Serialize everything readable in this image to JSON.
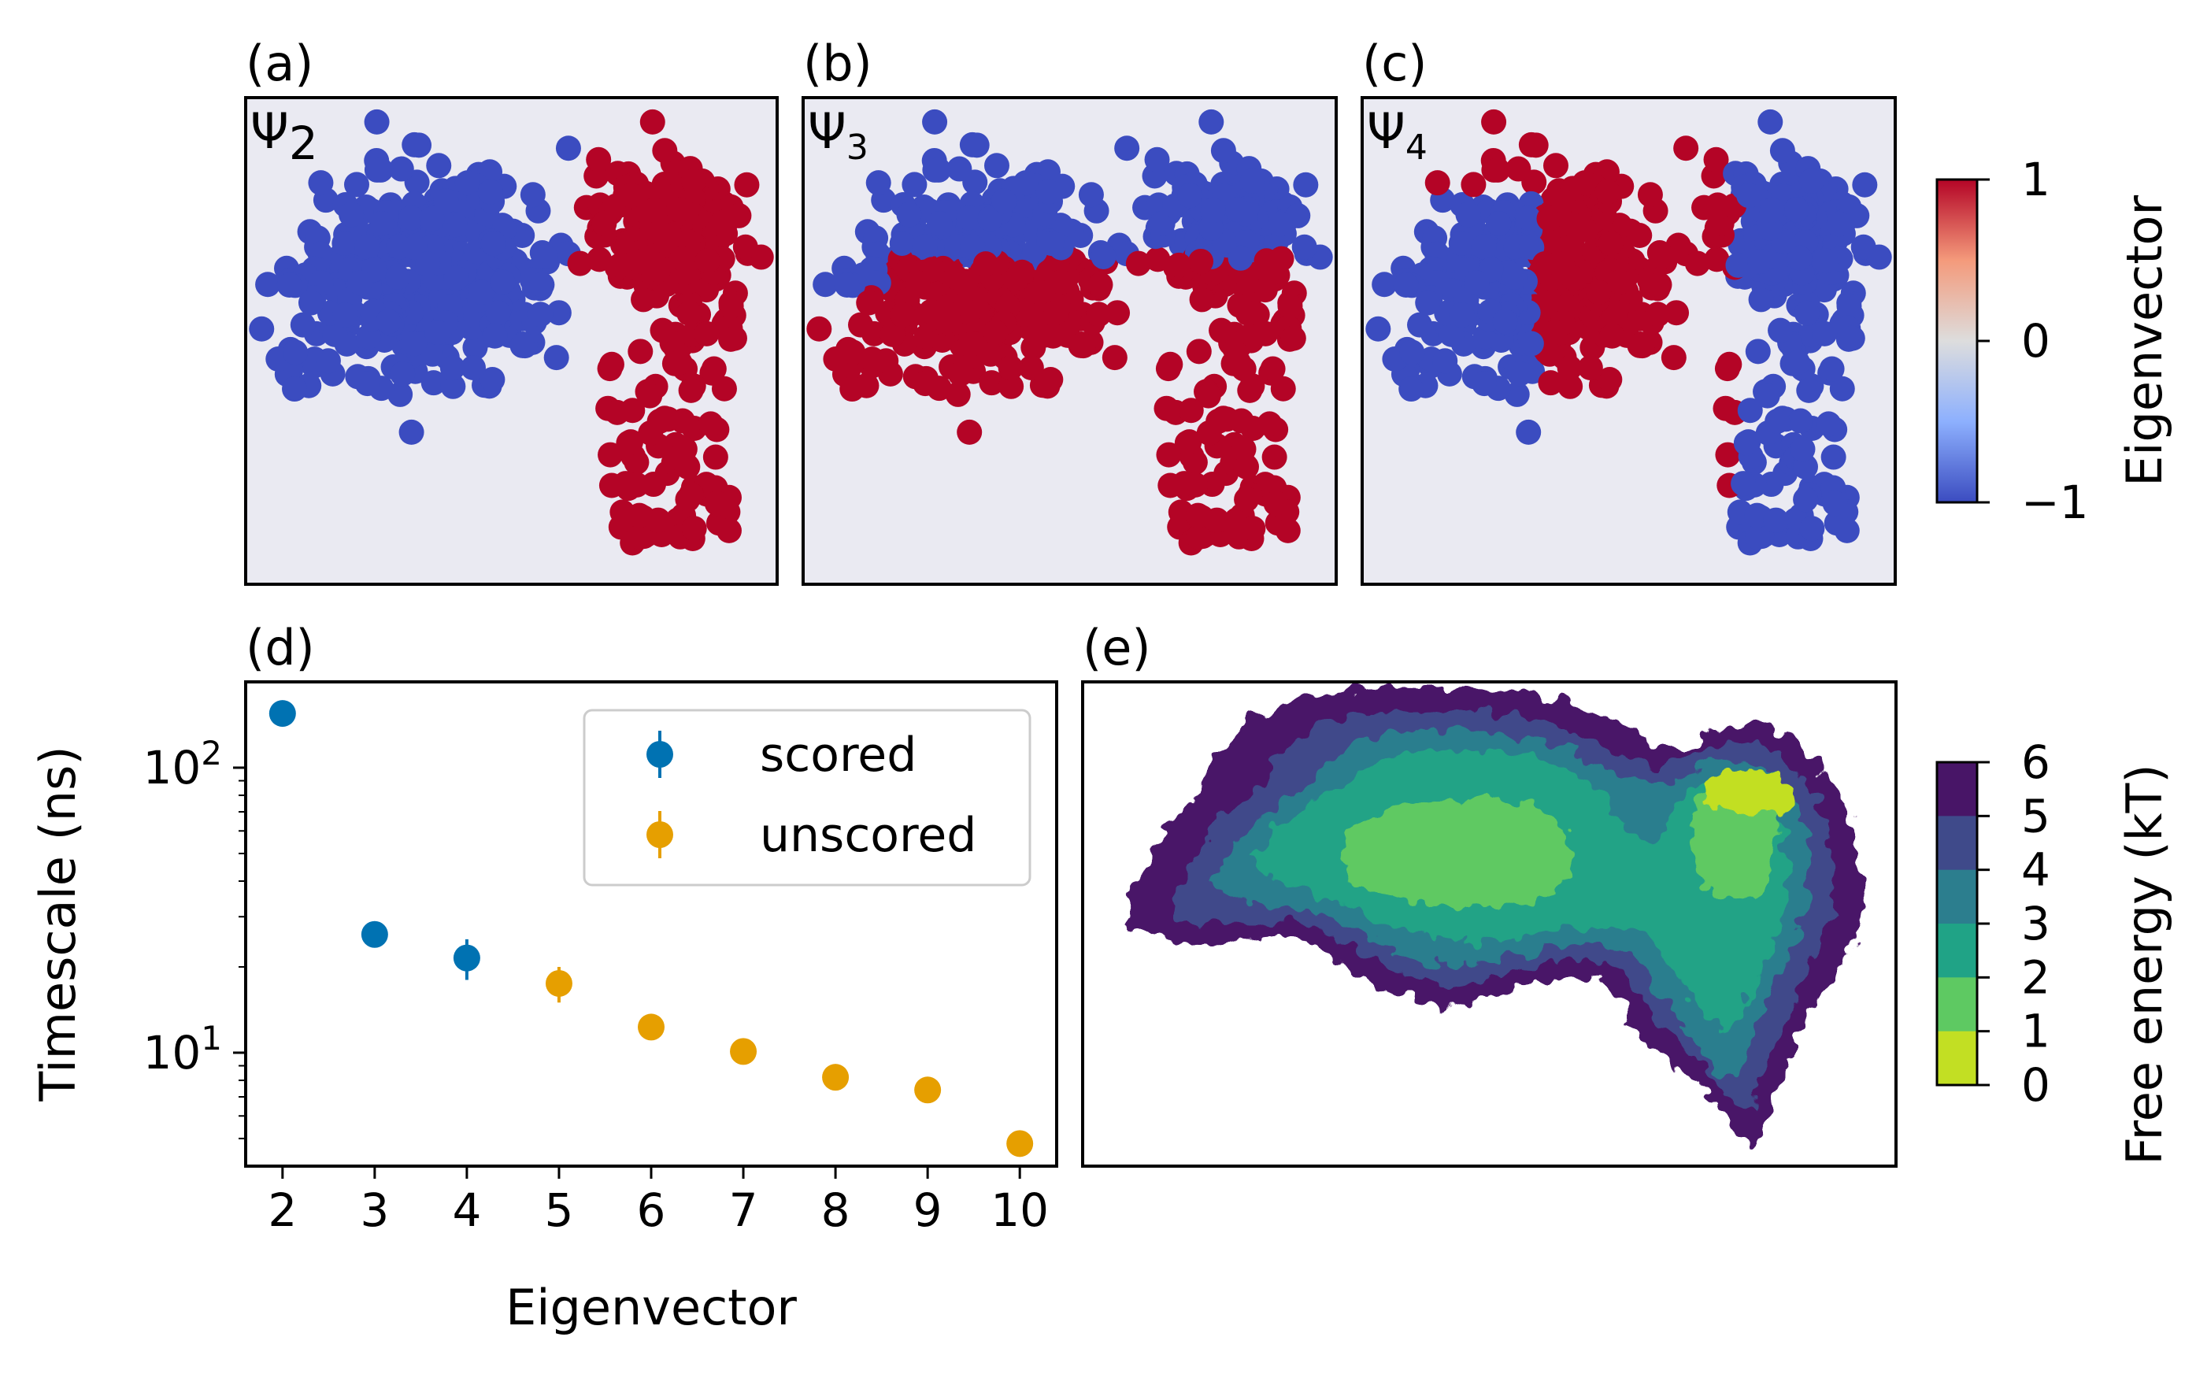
{
  "colors": {
    "positive": "#b40426",
    "negative": "#3b4cc0",
    "panel_bg": "#eaeaf2",
    "scored": "#0072b2",
    "unscored": "#e69f00"
  },
  "panels": {
    "a": {
      "label": "(a)",
      "psi": "Ψ",
      "sub": "2"
    },
    "b": {
      "label": "(b)",
      "psi": "Ψ",
      "sub": "3"
    },
    "c": {
      "label": "(c)",
      "psi": "Ψ",
      "sub": "4"
    },
    "d": {
      "label": "(d)"
    },
    "e": {
      "label": "(e)"
    }
  },
  "eig_colorbar": {
    "label": "Eigenvector",
    "ticks": [
      "1",
      "0",
      "−1"
    ],
    "cmap": "coolwarm"
  },
  "fe_colorbar": {
    "label": "Free energy (kT)",
    "ticks": [
      "6",
      "5",
      "4",
      "3",
      "2",
      "1",
      "0"
    ],
    "colors": [
      "#481567",
      "#3f4a8a",
      "#2c7e8e",
      "#20a386",
      "#5ec962",
      "#c2df23"
    ]
  },
  "chart_data": [
    {
      "type": "scatter",
      "panel": "d",
      "xlabel": "Eigenvector",
      "ylabel": "Timescale (ns)",
      "yscale": "log",
      "ylim": [
        4,
        200
      ],
      "xlim": [
        1.6,
        10.4
      ],
      "xticks": [
        "2",
        "3",
        "4",
        "5",
        "6",
        "7",
        "8",
        "9",
        "10"
      ],
      "yticks": [
        {
          "value": 100,
          "base": "10",
          "exp": "2"
        },
        {
          "value": 10,
          "base": "10",
          "exp": "1"
        }
      ],
      "legend": {
        "loc": "upper right"
      },
      "series": [
        {
          "name": "scored",
          "color": "#0072b2",
          "points": [
            {
              "x": 2,
              "y": 155,
              "err": 6
            },
            {
              "x": 3,
              "y": 26,
              "err": 1
            },
            {
              "x": 4,
              "y": 21.5,
              "err": 3.5
            }
          ]
        },
        {
          "name": "unscored",
          "color": "#e69f00",
          "points": [
            {
              "x": 5,
              "y": 17.5,
              "err": 2.5
            },
            {
              "x": 6,
              "y": 12.3,
              "err": 0.4
            },
            {
              "x": 7,
              "y": 10.1,
              "err": 0.5
            },
            {
              "x": 8,
              "y": 8.2,
              "err": 0.3
            },
            {
              "x": 9,
              "y": 7.4,
              "err": 0.3
            },
            {
              "x": 10,
              "y": 4.8,
              "err": 0.2
            }
          ]
        }
      ]
    },
    {
      "type": "scatter",
      "panel": "a, b, c",
      "color_values": [
        -1,
        1
      ],
      "note_points": "two-state eigenvector sign coloring of the same embedding",
      "series": [
        {
          "name": "",
          "values": []
        }
      ]
    },
    {
      "type": "heatmap",
      "panel": "e",
      "zrange": [
        0,
        6
      ],
      "levels": [
        0,
        1,
        2,
        3,
        4,
        5,
        6
      ]
    }
  ]
}
